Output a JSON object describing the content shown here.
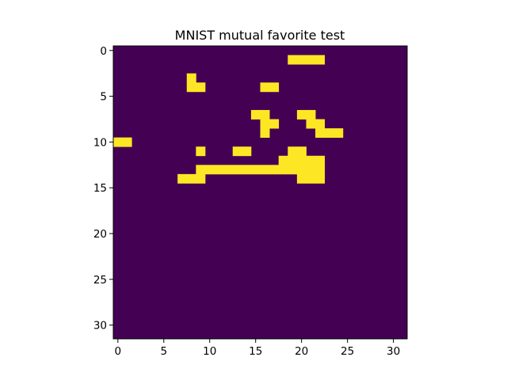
{
  "chart_data": {
    "type": "heatmap",
    "title": "MNIST mutual favorite test",
    "xlabel": "",
    "ylabel": "",
    "colors": {
      "low": "#440154",
      "high": "#fde725"
    },
    "xlim": [
      -0.5,
      31.5
    ],
    "ylim": [
      31.5,
      -0.5
    ],
    "xticks": [
      0,
      5,
      10,
      15,
      20,
      25,
      30
    ],
    "yticks": [
      0,
      5,
      10,
      15,
      20,
      25,
      30
    ],
    "grid": false,
    "rows": [
      "00000000000000000000000000000000",
      "00000000000000000001111000000000",
      "00000000000000000000000000000000",
      "00000000100000000000000000000000",
      "00000000110000001100000000000000",
      "00000000000000000000000000000000",
      "00000000000000000000000000000000",
      "00000000000000011000110000000000",
      "00000000000000001100011000000000",
      "00000000000000001000001110000000",
      "11000000000000000000000000000000",
      "00000000010001100001100000000000",
      "00000000000000000011111000000000",
      "00000000011111111111111000000000",
      "00000001110000000000111000000000",
      "00000000000000000000000000000000",
      "00000000000000000000000000000000",
      "00000000000000000000000000000000",
      "00000000000000000000000000000000",
      "00000000000000000000000000000000",
      "00000000000000000000000000000000",
      "00000000000000000000000000000000",
      "00000000000000000000000000000000",
      "00000000000000000000000000000000",
      "00000000000000000000000000000000",
      "00000000000000000000000000000000",
      "00000000000000000000000000000000",
      "00000000000000000000000000000000",
      "00000000000000000000000000000000",
      "00000000000000000000000000000000",
      "00000000000000000000000000000000",
      "00000000000000000000000000000000"
    ]
  }
}
